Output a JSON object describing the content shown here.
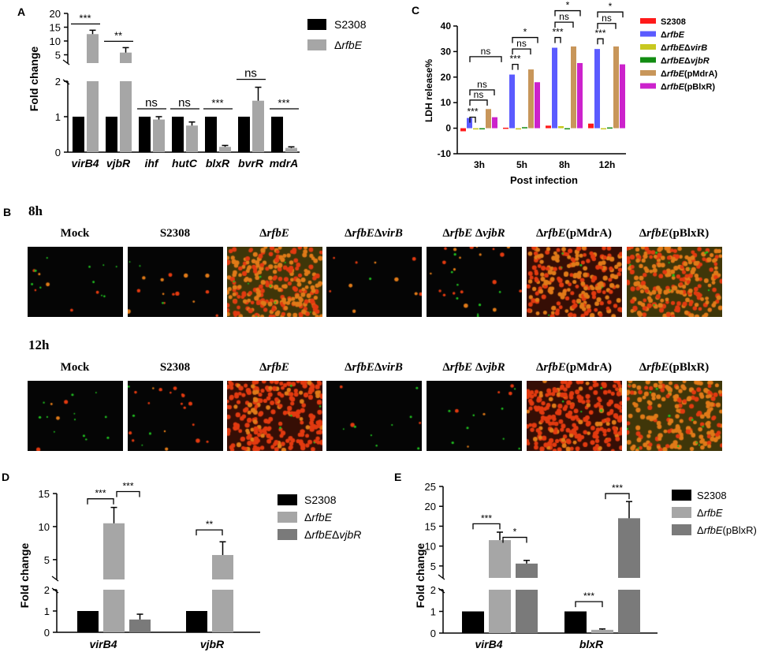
{
  "panel_letters": {
    "a": "A",
    "b": "B",
    "c": "C",
    "d": "D",
    "e": "E"
  },
  "colors": {
    "black": "#000000",
    "light_gray": "#a6a6a6",
    "dark_gray": "#7a7a7a",
    "s2308": "#ff1a1a",
    "rfbe": "#5b5bff",
    "virb": "#c8c820",
    "vjbr": "#128c12",
    "pmdra": "#c8965a",
    "pblxr": "#cc22cc",
    "cell_red": "#e23a10",
    "cell_orange": "#e07a18",
    "cell_green": "#20c020"
  },
  "chart_data": [
    {
      "id": "A",
      "type": "bar",
      "ylabel": "Fold change",
      "categories": [
        "virB4",
        "vjbR",
        "ihf",
        "hutC",
        "blxR",
        "bvrR",
        "mdrA"
      ],
      "series": [
        {
          "name": "S2308",
          "values": [
            1,
            1,
            1,
            1,
            1,
            1,
            1
          ],
          "errors": [
            0,
            0,
            0,
            0,
            0,
            0,
            0
          ]
        },
        {
          "name": "ΔrfbE",
          "values": [
            12.5,
            5.8,
            0.92,
            0.75,
            0.15,
            1.45,
            0.12
          ],
          "errors": [
            1.4,
            1.8,
            0.08,
            0.1,
            0.04,
            0.38,
            0.03
          ]
        }
      ],
      "axis": {
        "lower": [
          0,
          2
        ],
        "upper": [
          2,
          20
        ],
        "ticks_lower": [
          "0",
          "1",
          "2"
        ],
        "ticks_upper": [
          "5",
          "10",
          "15",
          "20"
        ]
      },
      "significance": [
        "***",
        "**",
        "ns",
        "ns",
        "***",
        "ns",
        "***"
      ],
      "legend": [
        "S2308",
        "ΔrfbE"
      ]
    },
    {
      "id": "C",
      "type": "bar",
      "ylabel": "LDH release%",
      "xlabel": "Post infection",
      "categories": [
        "3h",
        "5h",
        "8h",
        "12h"
      ],
      "ylim": [
        -10,
        40
      ],
      "yticks": [
        "-10",
        "0",
        "10",
        "20",
        "30",
        "40"
      ],
      "series": [
        {
          "name": "S2308",
          "values": [
            -1.2,
            0.2,
            1.0,
            1.8
          ]
        },
        {
          "name": "ΔrfbE",
          "values": [
            4,
            21,
            31.5,
            31
          ]
        },
        {
          "name": "ΔrfbEΔvirB",
          "values": [
            -0.5,
            -0.5,
            0.8,
            -0.2
          ]
        },
        {
          "name": "ΔrfbEΔvjbR",
          "values": [
            0,
            0.4,
            0,
            0.3
          ]
        },
        {
          "name": "ΔrfbE(pMdrA)",
          "values": [
            7.5,
            23,
            32,
            32
          ]
        },
        {
          "name": "ΔrfbE(pBlxR)",
          "values": [
            4.3,
            18,
            25.5,
            25
          ]
        }
      ],
      "brackets": [
        {
          "group": 0,
          "labels": [
            "***",
            "ns",
            "ns",
            "ns"
          ]
        },
        {
          "group": 1,
          "labels": [
            "***",
            "ns",
            "*"
          ]
        },
        {
          "group": 2,
          "labels": [
            "***",
            "ns",
            "*"
          ]
        },
        {
          "group": 3,
          "labels": [
            "***",
            "ns",
            "*"
          ]
        }
      ]
    },
    {
      "id": "D",
      "type": "bar",
      "ylabel": "Fold change",
      "categories": [
        "virB4",
        "vjbR"
      ],
      "series": [
        {
          "name": "S2308",
          "values": [
            1,
            1
          ]
        },
        {
          "name": "ΔrfbE",
          "values": [
            10.5,
            5.7
          ],
          "errors": [
            2.4,
            2.0
          ]
        },
        {
          "name": "ΔrfbEΔvjbR",
          "values": [
            0.6,
            null
          ],
          "errors": [
            0.25,
            0
          ]
        }
      ],
      "axis": {
        "ticks_lower": [
          "0",
          "1",
          "2"
        ],
        "ticks_upper": [
          "5",
          "10",
          "15"
        ]
      },
      "significance": [
        "***",
        "***",
        "**"
      ]
    },
    {
      "id": "E",
      "type": "bar",
      "ylabel": "Fold change",
      "categories": [
        "virB4",
        "blxR"
      ],
      "series": [
        {
          "name": "S2308",
          "values": [
            1,
            1
          ]
        },
        {
          "name": "ΔrfbE",
          "values": [
            11.5,
            0.15
          ],
          "errors": [
            2.0,
            0.04
          ]
        },
        {
          "name": "ΔrfbE(pBlxR)",
          "values": [
            5.6,
            17
          ],
          "errors": [
            0.8,
            4.2
          ]
        }
      ],
      "axis": {
        "ticks_lower": [
          "0",
          "1",
          "2"
        ],
        "ticks_upper": [
          "5",
          "10",
          "15",
          "20",
          "25"
        ]
      },
      "significance": [
        "***",
        "*",
        "***",
        "***"
      ]
    }
  ],
  "panelB": {
    "rows": [
      "8h",
      "12h"
    ],
    "columns": [
      "Mock",
      "S2308",
      "ΔrfbE",
      "ΔrfbEΔvirB",
      "ΔrfbE ΔvjbR",
      "ΔrfbE(pMdrA)",
      "ΔrfbE(pBlxR)"
    ]
  }
}
